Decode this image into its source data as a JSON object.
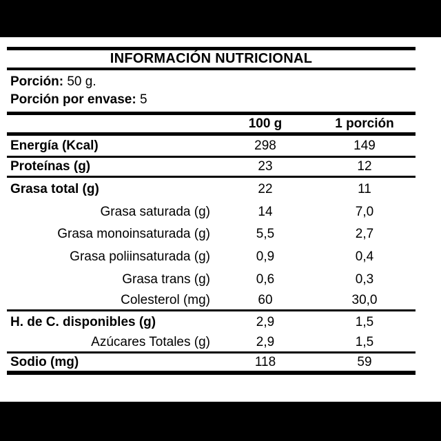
{
  "decor": {
    "bar_color": "#000000",
    "background": "#ffffff",
    "text_color": "#000000"
  },
  "label": {
    "title": "INFORMACIÓN NUTRICIONAL",
    "serving": {
      "label": "Porción:",
      "value": "50 g."
    },
    "servings_per_container": {
      "label": "Porción por envase:",
      "value": "5"
    },
    "columns": {
      "col1": "100 g",
      "col2": "1 porción"
    },
    "rows": [
      {
        "label": "Energía (Kcal)",
        "per100": "298",
        "portion": "149"
      },
      {
        "label": "Proteínas (g)",
        "per100": "23",
        "portion": "12"
      },
      {
        "label": "Grasa total (g)",
        "per100": "22",
        "portion": "11"
      },
      {
        "label": "Grasa saturada (g)",
        "per100": "14",
        "portion": "7,0"
      },
      {
        "label": "Grasa monoinsaturada (g)",
        "per100": "5,5",
        "portion": "2,7"
      },
      {
        "label": "Grasa poliinsaturada (g)",
        "per100": "0,9",
        "portion": "0,4"
      },
      {
        "label": "Grasa trans (g)",
        "per100": "0,6",
        "portion": "0,3"
      },
      {
        "label": "Colesterol (mg)",
        "per100": "60",
        "portion": "30,0"
      },
      {
        "label": "H. de C. disponibles (g)",
        "per100": "2,9",
        "portion": "1,5"
      },
      {
        "label": "Azúcares Totales (g)",
        "per100": "2,9",
        "portion": "1,5"
      },
      {
        "label": "Sodio (mg)",
        "per100": "118",
        "portion": "59"
      }
    ]
  }
}
